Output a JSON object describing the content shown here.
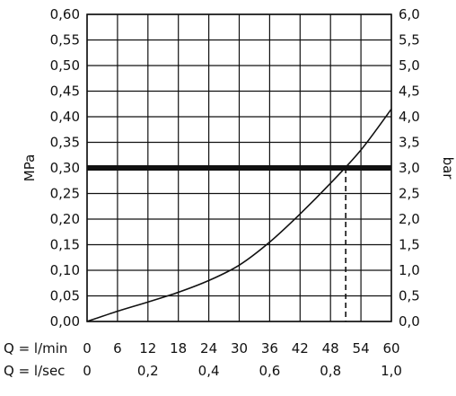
{
  "chart_data": {
    "type": "line",
    "left_axis": {
      "label": "MPa",
      "ticks": [
        "0,00",
        "0,05",
        "0,10",
        "0,15",
        "0,20",
        "0,25",
        "0,30",
        "0,35",
        "0,40",
        "0,45",
        "0,50",
        "0,55",
        "0,60"
      ],
      "range": [
        0,
        0.6
      ]
    },
    "right_axis": {
      "label": "bar",
      "ticks": [
        "0,0",
        "0,5",
        "1,0",
        "1,5",
        "2,0",
        "2,5",
        "3,0",
        "3,5",
        "4,0",
        "4,5",
        "5,0",
        "5,5",
        "6,0"
      ],
      "range": [
        0,
        6
      ]
    },
    "x_axis_lmin": {
      "label": "Q = l/min",
      "ticks": [
        "0",
        "6",
        "12",
        "18",
        "24",
        "30",
        "36",
        "42",
        "48",
        "54",
        "60"
      ],
      "range": [
        0,
        60
      ]
    },
    "x_axis_lsec": {
      "label": "Q = l/sec",
      "ticks": [
        "0",
        "0,2",
        "0,4",
        "0,6",
        "0,8",
        "1,0"
      ],
      "values": [
        0,
        0.2,
        0.4,
        0.6,
        0.8,
        1.0
      ]
    },
    "grid": true,
    "series": [
      {
        "x": [
          0,
          6,
          12,
          18,
          24,
          30,
          36,
          42,
          48,
          54,
          60
        ],
        "y": [
          0.0,
          0.02,
          0.038,
          0.057,
          0.08,
          0.11,
          0.155,
          0.21,
          0.27,
          0.335,
          0.415
        ]
      }
    ],
    "reference_line": {
      "y": 0.3
    },
    "marker": {
      "x": 51,
      "y": 0.3,
      "style": "dashed"
    }
  }
}
